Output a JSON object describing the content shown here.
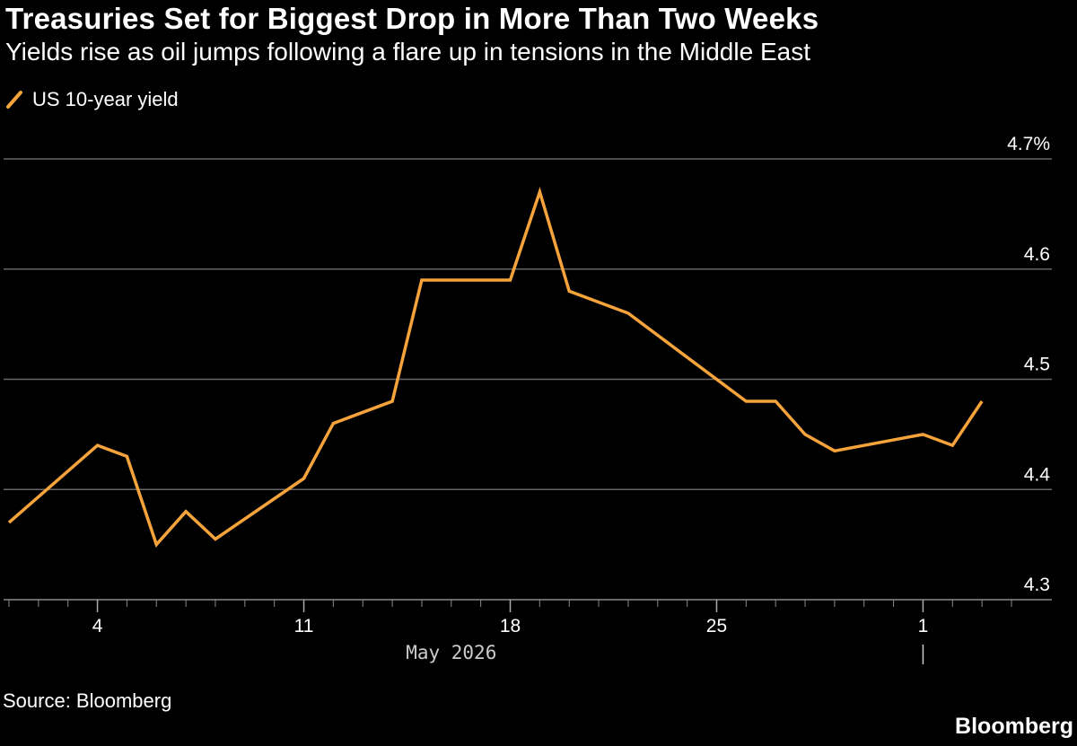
{
  "header": {
    "title": "Treasuries Set for Biggest Drop in More Than Two Weeks",
    "subtitle": "Yields rise as oil jumps following a flare up in tensions in the Middle East"
  },
  "footer": {
    "source": "Source: Bloomberg",
    "brand": "Bloomberg"
  },
  "colors": {
    "background": "#000000",
    "line": "#f5a33a",
    "grid": "#666666",
    "text": "#ffffff"
  },
  "chart_data": {
    "type": "line",
    "title": "Treasuries Set for Biggest Drop in More Than Two Weeks",
    "subtitle": "Yields rise as oil jumps following a flare up in tensions in the Middle East",
    "xlabel": "May 2026",
    "ylabel": "",
    "ylim": [
      4.3,
      4.7
    ],
    "y_ticks": [
      4.3,
      4.4,
      4.5,
      4.6,
      4.7
    ],
    "y_tick_labels": [
      "4.3",
      "4.4",
      "4.5",
      "4.6",
      "4.7%"
    ],
    "x_tick_labels": [
      "4",
      "11",
      "18",
      "25",
      "1"
    ],
    "x_tick_dates": [
      "2026-05-04",
      "2026-05-11",
      "2026-05-18",
      "2026-05-25",
      "2026-06-01"
    ],
    "x_range": [
      "2026-05-01",
      "2026-06-04"
    ],
    "grid": true,
    "legend_position": "top-left",
    "series": [
      {
        "name": "US 10-year yield",
        "points": [
          {
            "x": "2026-05-01",
            "y": 4.37
          },
          {
            "x": "2026-05-04",
            "y": 4.44
          },
          {
            "x": "2026-05-05",
            "y": 4.43
          },
          {
            "x": "2026-05-06",
            "y": 4.35
          },
          {
            "x": "2026-05-07",
            "y": 4.38
          },
          {
            "x": "2026-05-08",
            "y": 4.355
          },
          {
            "x": "2026-05-11",
            "y": 4.41
          },
          {
            "x": "2026-05-12",
            "y": 4.46
          },
          {
            "x": "2026-05-13",
            "y": 4.47
          },
          {
            "x": "2026-05-14",
            "y": 4.48
          },
          {
            "x": "2026-05-15",
            "y": 4.59
          },
          {
            "x": "2026-05-18",
            "y": 4.59
          },
          {
            "x": "2026-05-19",
            "y": 4.67
          },
          {
            "x": "2026-05-20",
            "y": 4.58
          },
          {
            "x": "2026-05-21",
            "y": 4.57
          },
          {
            "x": "2026-05-22",
            "y": 4.56
          },
          {
            "x": "2026-05-26",
            "y": 4.48
          },
          {
            "x": "2026-05-27",
            "y": 4.48
          },
          {
            "x": "2026-05-28",
            "y": 4.45
          },
          {
            "x": "2026-05-29",
            "y": 4.435
          },
          {
            "x": "2026-06-01",
            "y": 4.45
          },
          {
            "x": "2026-06-02",
            "y": 4.44
          },
          {
            "x": "2026-06-03",
            "y": 4.48
          }
        ]
      }
    ]
  }
}
